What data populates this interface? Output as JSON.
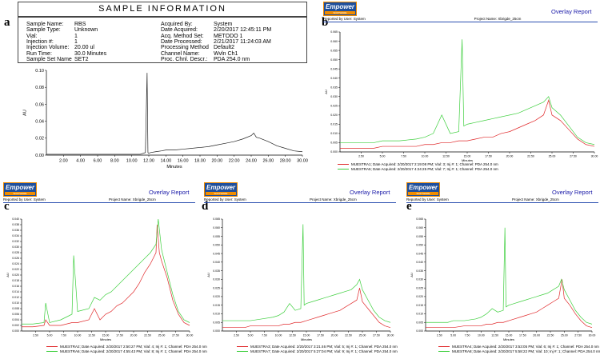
{
  "panels": {
    "a": "a",
    "b": "b",
    "c": "c",
    "d": "d",
    "e": "e"
  },
  "sample_info": {
    "title": "SAMPLE INFORMATION",
    "left": [
      {
        "label": "Sample Name:",
        "value": "RBS"
      },
      {
        "label": "Sample Type:",
        "value": "Unknown"
      },
      {
        "label": "Vial:",
        "value": "1"
      },
      {
        "label": "Injection #:",
        "value": "1"
      },
      {
        "label": "Injection Volume:",
        "value": "20.00 ul"
      },
      {
        "label": "Run Time:",
        "value": "30.0 Minutes"
      },
      {
        "label": "Sample Set Name",
        "value": "SET2"
      }
    ],
    "right": [
      {
        "label": "Acquired By:",
        "value": "System"
      },
      {
        "label": "Date Acquired:",
        "value": "2/20/2017 12:45:11 PM"
      },
      {
        "label": "Acq. Method Set:",
        "value": "METODO 1"
      },
      {
        "label": "Date Processed:",
        "value": "2/21/2017 11:24:03 AM"
      },
      {
        "label": "Processing Method",
        "value": "Default2"
      },
      {
        "label": "Channel Name:",
        "value": "Wvln Ch1"
      },
      {
        "label": "Proc. Chnl. Descr.:",
        "value": "PDA 254.0 nm"
      }
    ]
  },
  "report": {
    "logo_text": "Empower",
    "logo_sub": "SOFTWARE",
    "reported_by": "Reported by User:  System",
    "project": "Project Name:  Xbrigde_25cm",
    "title": "Overlay Report",
    "minutes": "Minutes",
    "au": "AU"
  },
  "colors": {
    "red": "#e0282a",
    "green": "#3ecf3e",
    "black": "#222222",
    "blue_rule": "#2b4fb0"
  },
  "chart_data": [
    {
      "id": "a",
      "type": "line",
      "title": "",
      "xlabel": "Minutes",
      "ylabel": "AU",
      "xlim": [
        0,
        30
      ],
      "ylim": [
        0,
        0.1
      ],
      "xticks": [
        "2.00",
        "4.00",
        "6.00",
        "8.00",
        "10.00",
        "12.00",
        "14.00",
        "16.00",
        "18.00",
        "20.00",
        "22.00",
        "24.00",
        "26.00",
        "28.00",
        "30.00"
      ],
      "yticks": [
        "0.00",
        "0.02",
        "0.04",
        "0.06",
        "0.08",
        "0.10"
      ],
      "series": [
        {
          "color": "#222222",
          "x": [
            0,
            2,
            4,
            6,
            8,
            10,
            11,
            11.6,
            11.8,
            11.9,
            12,
            12.2,
            12.8,
            13.5,
            14,
            15,
            16,
            17,
            18,
            19,
            20,
            21,
            22,
            23,
            24,
            24.3,
            24.6,
            25,
            26,
            27,
            28,
            29,
            30
          ],
          "y": [
            0.001,
            0.001,
            0.001,
            0.001,
            0.001,
            0.001,
            0.001,
            0.003,
            0.097,
            0.003,
            0.002,
            0.003,
            0.004,
            0.005,
            0.006,
            0.006,
            0.007,
            0.008,
            0.009,
            0.01,
            0.012,
            0.014,
            0.016,
            0.019,
            0.023,
            0.026,
            0.021,
            0.02,
            0.016,
            0.011,
            0.008,
            0.005,
            0.004
          ]
        }
      ]
    },
    {
      "id": "b",
      "type": "line",
      "title": "",
      "xlabel": "Minutes",
      "ylabel": "AU",
      "xlim": [
        0,
        30
      ],
      "ylim": [
        0,
        0.065
      ],
      "xticks": [
        "2.50",
        "5.00",
        "7.50",
        "10.00",
        "12.50",
        "15.00",
        "17.50",
        "20.00",
        "22.50",
        "25.00",
        "27.50",
        "30.00"
      ],
      "yticks": [
        "0.000",
        "0.005",
        "0.010",
        "0.015",
        "0.020",
        "0.025",
        "0.030",
        "0.035",
        "0.040",
        "0.045",
        "0.050",
        "0.055",
        "0.060",
        "0.065"
      ],
      "series": [
        {
          "name": "MUESTRA1;",
          "color": "#e0282a",
          "x": [
            0,
            2,
            4,
            5,
            7,
            9,
            10,
            11,
            12,
            13,
            14,
            15,
            16,
            17,
            18,
            19,
            20,
            21,
            22,
            23,
            24,
            24.6,
            25,
            26,
            27,
            28,
            29,
            30
          ],
          "y": [
            0.002,
            0.002,
            0.002,
            0.003,
            0.003,
            0.003,
            0.004,
            0.004,
            0.005,
            0.005,
            0.006,
            0.006,
            0.007,
            0.008,
            0.008,
            0.01,
            0.011,
            0.013,
            0.015,
            0.017,
            0.02,
            0.028,
            0.02,
            0.017,
            0.012,
            0.007,
            0.004,
            0.003
          ]
        },
        {
          "name": "MUESTRA5;",
          "color": "#3ecf3e",
          "x": [
            0,
            2,
            4,
            5,
            7,
            9,
            10,
            11,
            12,
            13,
            14,
            14.4,
            14.6,
            15,
            16,
            17,
            18,
            19,
            20,
            21,
            22,
            23,
            24,
            24.6,
            25,
            26,
            27,
            28,
            29,
            30
          ],
          "y": [
            0.005,
            0.005,
            0.005,
            0.006,
            0.006,
            0.007,
            0.008,
            0.01,
            0.02,
            0.01,
            0.011,
            0.061,
            0.014,
            0.015,
            0.016,
            0.017,
            0.018,
            0.019,
            0.02,
            0.021,
            0.023,
            0.025,
            0.027,
            0.03,
            0.024,
            0.02,
            0.014,
            0.008,
            0.005,
            0.004
          ]
        }
      ]
    },
    {
      "id": "c",
      "type": "line",
      "title": "",
      "xlabel": "Minutes",
      "ylabel": "AU",
      "xlim": [
        0,
        30
      ],
      "ylim": [
        0,
        0.04
      ],
      "xticks": [
        "2.50",
        "5.00",
        "7.50",
        "10.00",
        "12.50",
        "15.00",
        "17.50",
        "20.00",
        "22.50",
        "25.00",
        "27.50",
        "30.00"
      ],
      "yticks": [
        "0.000",
        "0.002",
        "0.004",
        "0.006",
        "0.008",
        "0.010",
        "0.012",
        "0.014",
        "0.016",
        "0.018",
        "0.020",
        "0.022",
        "0.024",
        "0.026",
        "0.028",
        "0.030",
        "0.032",
        "0.034",
        "0.036",
        "0.038",
        "0.040"
      ],
      "series": [
        {
          "name": "MUESTRA2;",
          "color": "#e0282a",
          "x": [
            0,
            2,
            4,
            4.3,
            5,
            7,
            9,
            10,
            12,
            13,
            14,
            15,
            16,
            17,
            18,
            19,
            20,
            21,
            22,
            23,
            24,
            24.2,
            24.6,
            25,
            26,
            27,
            28,
            29,
            30
          ],
          "y": [
            0.0015,
            0.0015,
            0.002,
            0.004,
            0.002,
            0.002,
            0.003,
            0.003,
            0.004,
            0.008,
            0.004,
            0.006,
            0.007,
            0.009,
            0.01,
            0.012,
            0.014,
            0.017,
            0.021,
            0.024,
            0.028,
            0.038,
            0.028,
            0.025,
            0.019,
            0.011,
            0.006,
            0.003,
            0.002
          ]
        },
        {
          "name": "MUESTRA6;",
          "color": "#3ecf3e",
          "x": [
            0,
            2,
            4,
            4.3,
            5,
            7,
            8,
            9,
            9.3,
            10,
            12,
            13,
            14,
            15,
            16,
            17,
            18,
            19,
            20,
            21,
            22,
            23,
            24,
            24.4,
            25,
            26,
            27,
            28,
            29,
            30
          ],
          "y": [
            0.0025,
            0.0025,
            0.003,
            0.01,
            0.003,
            0.004,
            0.005,
            0.006,
            0.027,
            0.007,
            0.008,
            0.012,
            0.011,
            0.013,
            0.014,
            0.016,
            0.018,
            0.02,
            0.022,
            0.024,
            0.026,
            0.028,
            0.031,
            0.04,
            0.029,
            0.021,
            0.013,
            0.007,
            0.004,
            0.003
          ]
        }
      ]
    },
    {
      "id": "d",
      "type": "line",
      "title": "",
      "xlabel": "Minutes",
      "ylabel": "AU",
      "xlim": [
        0,
        30
      ],
      "ylim": [
        0,
        0.065
      ],
      "xticks": [
        "2.50",
        "5.00",
        "7.50",
        "10.00",
        "12.50",
        "15.00",
        "17.50",
        "20.00",
        "22.50",
        "25.00",
        "27.50",
        "30.00"
      ],
      "yticks": [
        "0.000",
        "0.005",
        "0.010",
        "0.015",
        "0.020",
        "0.025",
        "0.030",
        "0.035",
        "0.040",
        "0.045",
        "0.050",
        "0.055",
        "0.060",
        "0.065"
      ],
      "series": [
        {
          "name": "MUESTRA3;",
          "color": "#e0282a",
          "x": [
            0,
            2,
            4,
            5,
            7,
            9,
            10,
            11,
            12,
            13,
            14,
            15,
            16,
            17,
            18,
            19,
            20,
            21,
            22,
            23,
            24,
            24.5,
            25,
            26,
            27,
            28,
            29,
            30
          ],
          "y": [
            0.002,
            0.002,
            0.002,
            0.003,
            0.003,
            0.003,
            0.003,
            0.004,
            0.004,
            0.005,
            0.005,
            0.006,
            0.007,
            0.008,
            0.009,
            0.01,
            0.011,
            0.012,
            0.014,
            0.016,
            0.018,
            0.025,
            0.017,
            0.013,
            0.009,
            0.005,
            0.003,
            0.002
          ]
        },
        {
          "name": "MUESTRA7;",
          "color": "#3ecf3e",
          "x": [
            0,
            2,
            4,
            5,
            7,
            9,
            10,
            11,
            12,
            13,
            14,
            14.4,
            14.6,
            15,
            16,
            17,
            18,
            19,
            20,
            21,
            22,
            23,
            24,
            24.5,
            25,
            26,
            27,
            28,
            29,
            30
          ],
          "y": [
            0.006,
            0.006,
            0.006,
            0.006,
            0.007,
            0.008,
            0.009,
            0.011,
            0.016,
            0.012,
            0.013,
            0.062,
            0.015,
            0.016,
            0.017,
            0.018,
            0.019,
            0.02,
            0.021,
            0.022,
            0.023,
            0.024,
            0.027,
            0.03,
            0.024,
            0.018,
            0.012,
            0.008,
            0.006,
            0.005
          ]
        }
      ]
    },
    {
      "id": "e",
      "type": "line",
      "title": "",
      "xlabel": "Minutes",
      "ylabel": "AU",
      "xlim": [
        0,
        30
      ],
      "ylim": [
        0,
        0.065
      ],
      "xticks": [
        "2.50",
        "5.00",
        "7.50",
        "10.00",
        "12.50",
        "15.00",
        "17.50",
        "20.00",
        "22.50",
        "25.00",
        "27.50",
        "30.00"
      ],
      "yticks": [
        "0.000",
        "0.005",
        "0.010",
        "0.015",
        "0.020",
        "0.025",
        "0.030",
        "0.035",
        "0.040",
        "0.045",
        "0.050",
        "0.055",
        "0.060",
        "0.065"
      ],
      "series": [
        {
          "name": "MUESTRA4;",
          "color": "#e0282a",
          "x": [
            0,
            2,
            4,
            5,
            7,
            9,
            10,
            11,
            12,
            13,
            14,
            15,
            16,
            17,
            18,
            19,
            20,
            21,
            22,
            23,
            24,
            24.6,
            25,
            26,
            27,
            28,
            29,
            30
          ],
          "y": [
            0.002,
            0.002,
            0.002,
            0.002,
            0.003,
            0.003,
            0.003,
            0.004,
            0.004,
            0.005,
            0.005,
            0.006,
            0.007,
            0.008,
            0.009,
            0.01,
            0.011,
            0.013,
            0.015,
            0.017,
            0.019,
            0.03,
            0.019,
            0.015,
            0.01,
            0.006,
            0.003,
            0.002
          ]
        },
        {
          "name": "MUESTRA8;",
          "color": "#3ecf3e",
          "x": [
            0,
            2,
            4,
            5,
            7,
            9,
            10,
            11,
            12,
            13,
            14,
            14.3,
            14.5,
            15,
            16,
            17,
            18,
            19,
            20,
            21,
            22,
            23,
            24,
            24.5,
            25,
            26,
            27,
            28,
            29,
            30
          ],
          "y": [
            0.005,
            0.005,
            0.005,
            0.006,
            0.006,
            0.007,
            0.008,
            0.01,
            0.013,
            0.011,
            0.012,
            0.06,
            0.014,
            0.015,
            0.016,
            0.017,
            0.018,
            0.019,
            0.02,
            0.021,
            0.022,
            0.024,
            0.026,
            0.03,
            0.024,
            0.018,
            0.012,
            0.008,
            0.005,
            0.004
          ]
        }
      ]
    }
  ],
  "legends": {
    "b": [
      {
        "name": "MUESTRA1;",
        "text": "Date Acquired: 2/20/2017 2:19:08 PM;  Vial: 3;  Inj #: 1;  Channel: PDA 254.0 nm"
      },
      {
        "name": "MUESTRA5;",
        "text": "Date Acquired: 2/20/2017 4:24:25 PM;  Vial: 7;  Inj #: 1;  Channel: PDA 254.0 nm"
      }
    ],
    "c": [
      {
        "name": "MUESTRA2;",
        "text": "Date Acquired: 2/20/2017 2:50:27 PM;  Vial: 4;  Inj #: 1;  Channel: PDA 254.0 nm"
      },
      {
        "name": "MUESTRA6;",
        "text": "Date Acquired: 2/20/2017 4:55:43 PM;  Vial: 8;  Inj #: 1;  Channel: PDA 254.0 nm"
      }
    ],
    "d": [
      {
        "name": "MUESTRA3;",
        "text": "Date Acquired: 2/20/2017 3:21:46 PM;  Vial: 5;  Inj #: 1;  Channel: PDA 254.0 nm"
      },
      {
        "name": "MUESTRA7;",
        "text": "Date Acquired: 2/20/2017 5:27:04 PM;  Vial: 9;  Inj #: 1;  Channel: PDA 254.0 nm"
      }
    ],
    "e": [
      {
        "name": "MUESTRA4;",
        "text": "Date Acquired: 2/20/2017 3:53:05 PM;  Vial: 6;  Inj #: 1;  Channel: PDA 254.0 nm"
      },
      {
        "name": "MUESTRA8;",
        "text": "Date Acquired: 2/20/2017 5:58:22 PM;  Vial: 10;  Inj #: 1;  Channel: PDA 254.0 nm"
      }
    ]
  }
}
